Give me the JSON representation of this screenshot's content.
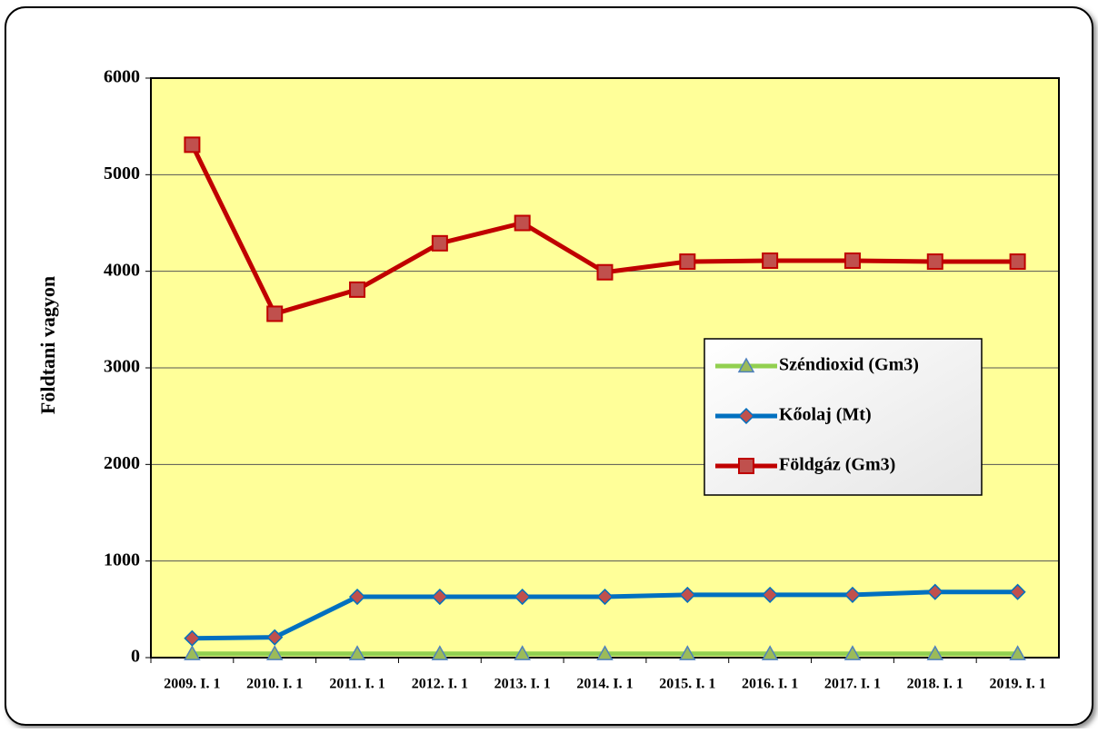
{
  "chart_data": {
    "type": "line",
    "y_label": "Földtani vagyon",
    "categories": [
      "2009. I. 1",
      "2010. I. 1",
      "2011. I. 1",
      "2012. I. 1",
      "2013. I. 1",
      "2014. I. 1",
      "2015. I. 1",
      "2016. I. 1",
      "2017. I. 1",
      "2018. I. 1",
      "2019. I. 1"
    ],
    "series": [
      {
        "name": "Széndioxid (Gm3)",
        "color": "#92d050",
        "marker": "triangle",
        "values": [
          40,
          40,
          40,
          40,
          40,
          40,
          40,
          40,
          40,
          40,
          40
        ]
      },
      {
        "name": "Kőolaj (Mt)",
        "color": "#0070c0",
        "marker": "diamond",
        "values": [
          200,
          210,
          630,
          630,
          630,
          630,
          650,
          650,
          650,
          680,
          680
        ]
      },
      {
        "name": "Földgáz (Gm3)",
        "color": "#c00000",
        "marker": "square",
        "values": [
          5310,
          3560,
          3810,
          4290,
          4500,
          3990,
          4100,
          4110,
          4110,
          4100,
          4100
        ]
      }
    ],
    "ylim": [
      0,
      6000
    ],
    "yticks": [
      0,
      1000,
      2000,
      3000,
      4000,
      5000,
      6000
    ],
    "grid": true,
    "plot_background": "#ffff99",
    "legend": "right"
  }
}
